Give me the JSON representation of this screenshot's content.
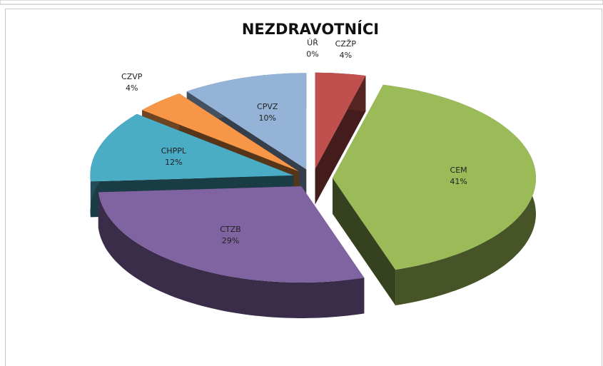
{
  "chart_data": {
    "type": "pie",
    "title": "NEZDRAVOTNÍCI",
    "categories": [
      "CZŽP",
      "CEM",
      "CTZB",
      "CHPPL",
      "CZVP",
      "CPVZ",
      "ÚŘ"
    ],
    "values": [
      4,
      41,
      29,
      12,
      4,
      10,
      0
    ],
    "value_labels": [
      "4%",
      "41%",
      "29%",
      "12%",
      "4%",
      "10%",
      "0%"
    ],
    "colors": [
      "#c0504d",
      "#9bbb59",
      "#8064a2",
      "#4bacc6",
      "#f79646",
      "#95b3d7",
      "#7f7f7f"
    ]
  }
}
